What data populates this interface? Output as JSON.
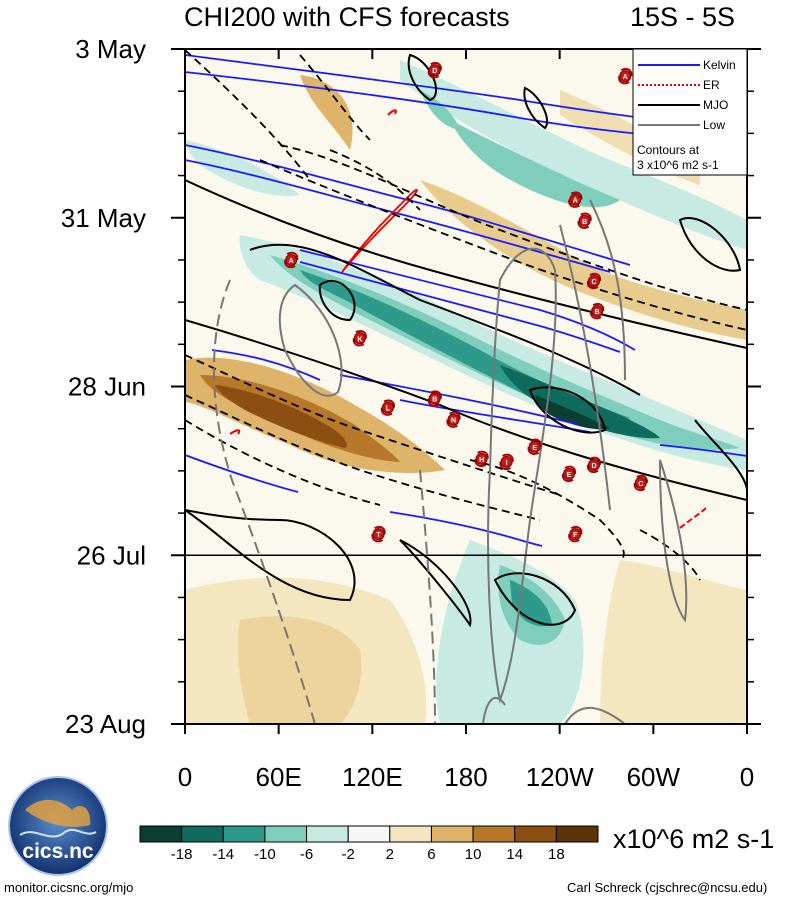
{
  "chart_data": {
    "type": "heatmap",
    "title": "CHI200 with CFS forecasts",
    "subtitle": "15S - 5S",
    "x_ticks": [
      "0",
      "60E",
      "120E",
      "180",
      "120W",
      "60W",
      "0"
    ],
    "x_tick_lon": [
      0,
      60,
      120,
      180,
      240,
      300,
      360
    ],
    "xlim": [
      0,
      360
    ],
    "y_ticks": [
      "3 May",
      "31 May",
      "28 Jun",
      "26 Jul",
      "23 Aug"
    ],
    "y_tick_day": [
      0,
      28,
      56,
      84,
      112
    ],
    "ylim_days": [
      0,
      112
    ],
    "forecast_start_day": 84,
    "units": "x10^6 m2 s-1",
    "colorbar": {
      "labels": [
        "-18",
        "-14",
        "-10",
        "-6",
        "-2",
        "2",
        "6",
        "10",
        "14",
        "18"
      ],
      "colors": [
        "#0b3d33",
        "#0f6b5e",
        "#2e9a8c",
        "#7fcdbb",
        "#c7ebe3",
        "#f7f7f7",
        "#f4e6bf",
        "#deb46a",
        "#b8782a",
        "#8c4f12",
        "#5c3209"
      ]
    },
    "legend": {
      "items": [
        {
          "label": "Kelvin",
          "color": "#1a1aff",
          "dash": "solid"
        },
        {
          "label": "ER",
          "color": "#ee0000",
          "dash": "dotted"
        },
        {
          "label": "MJO",
          "color": "#000000",
          "dash": "solid"
        },
        {
          "label": "Low",
          "color": "#777777",
          "dash": "solid"
        }
      ],
      "note_line1": "Contours at",
      "note_line2": "3 x10^6 m2 s-1",
      "position": "top-right"
    },
    "storms": [
      {
        "letter": "D",
        "lon": 160,
        "day": 3.5
      },
      {
        "letter": "A",
        "lon": 282,
        "day": 4.5
      },
      {
        "letter": "A",
        "lon": 250,
        "day": 25
      },
      {
        "letter": "B",
        "lon": 256,
        "day": 28.5
      },
      {
        "letter": "A",
        "lon": 68,
        "day": 35
      },
      {
        "letter": "C",
        "lon": 262,
        "day": 38.5
      },
      {
        "letter": "B",
        "lon": 264,
        "day": 43.5
      },
      {
        "letter": "K",
        "lon": 112,
        "day": 48
      },
      {
        "letter": "B",
        "lon": 160,
        "day": 58
      },
      {
        "letter": "L",
        "lon": 130,
        "day": 59.5
      },
      {
        "letter": "N",
        "lon": 172,
        "day": 61.5
      },
      {
        "letter": "E",
        "lon": 224,
        "day": 66
      },
      {
        "letter": "H",
        "lon": 190,
        "day": 68
      },
      {
        "letter": "I",
        "lon": 206,
        "day": 68.5
      },
      {
        "letter": "D",
        "lon": 262,
        "day": 69
      },
      {
        "letter": "E",
        "lon": 246,
        "day": 70.5
      },
      {
        "letter": "C",
        "lon": 292,
        "day": 72
      },
      {
        "letter": "F",
        "lon": 250,
        "day": 80.5
      },
      {
        "letter": "T",
        "lon": 124,
        "day": 80.5
      }
    ]
  },
  "title": "CHI200 with CFS forecasts",
  "subtitle": "15S - 5S",
  "units": "x10^6 m2 s-1",
  "logo_text": "cics.nc",
  "credit_left": "monitor.cicsnc.org/mjo",
  "credit_right": "Carl Schreck (cjschrec@ncsu.edu)"
}
